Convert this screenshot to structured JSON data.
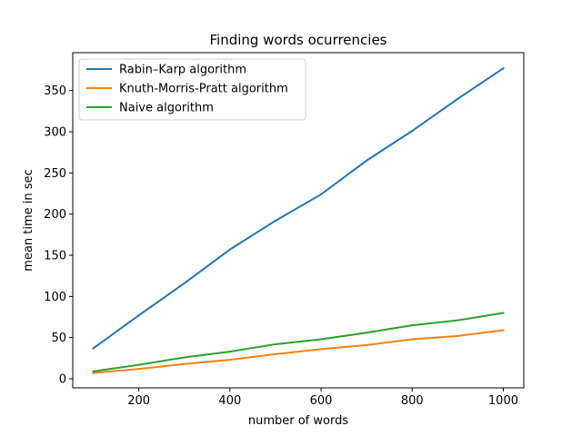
{
  "chart_data": {
    "type": "line",
    "title": "Finding words ocurrencies",
    "xlabel": "number of words",
    "ylabel": "mean time in sec",
    "xlim": [
      55,
      1045
    ],
    "ylim": [
      -11,
      396
    ],
    "xticks": [
      200,
      400,
      600,
      800,
      1000
    ],
    "yticks": [
      0,
      50,
      100,
      150,
      200,
      250,
      300,
      350
    ],
    "grid": false,
    "legend_position": "upper-left",
    "x": [
      100,
      200,
      300,
      400,
      500,
      600,
      700,
      800,
      900,
      1000
    ],
    "series": [
      {
        "name": "Rabin–Karp algorithm",
        "color": "#1f77b4",
        "values": [
          37,
          77,
          116,
          157,
          192,
          224,
          265,
          301,
          340,
          377
        ]
      },
      {
        "name": "Knuth-Morris-Pratt algorithm",
        "color": "#ff7f0e",
        "values": [
          7,
          12,
          18,
          23,
          30,
          36,
          41,
          48,
          52,
          59
        ]
      },
      {
        "name": "Naive algorithm",
        "color": "#2ca02c",
        "values": [
          9,
          17,
          26,
          33,
          42,
          48,
          56,
          65,
          71,
          80
        ]
      }
    ]
  }
}
